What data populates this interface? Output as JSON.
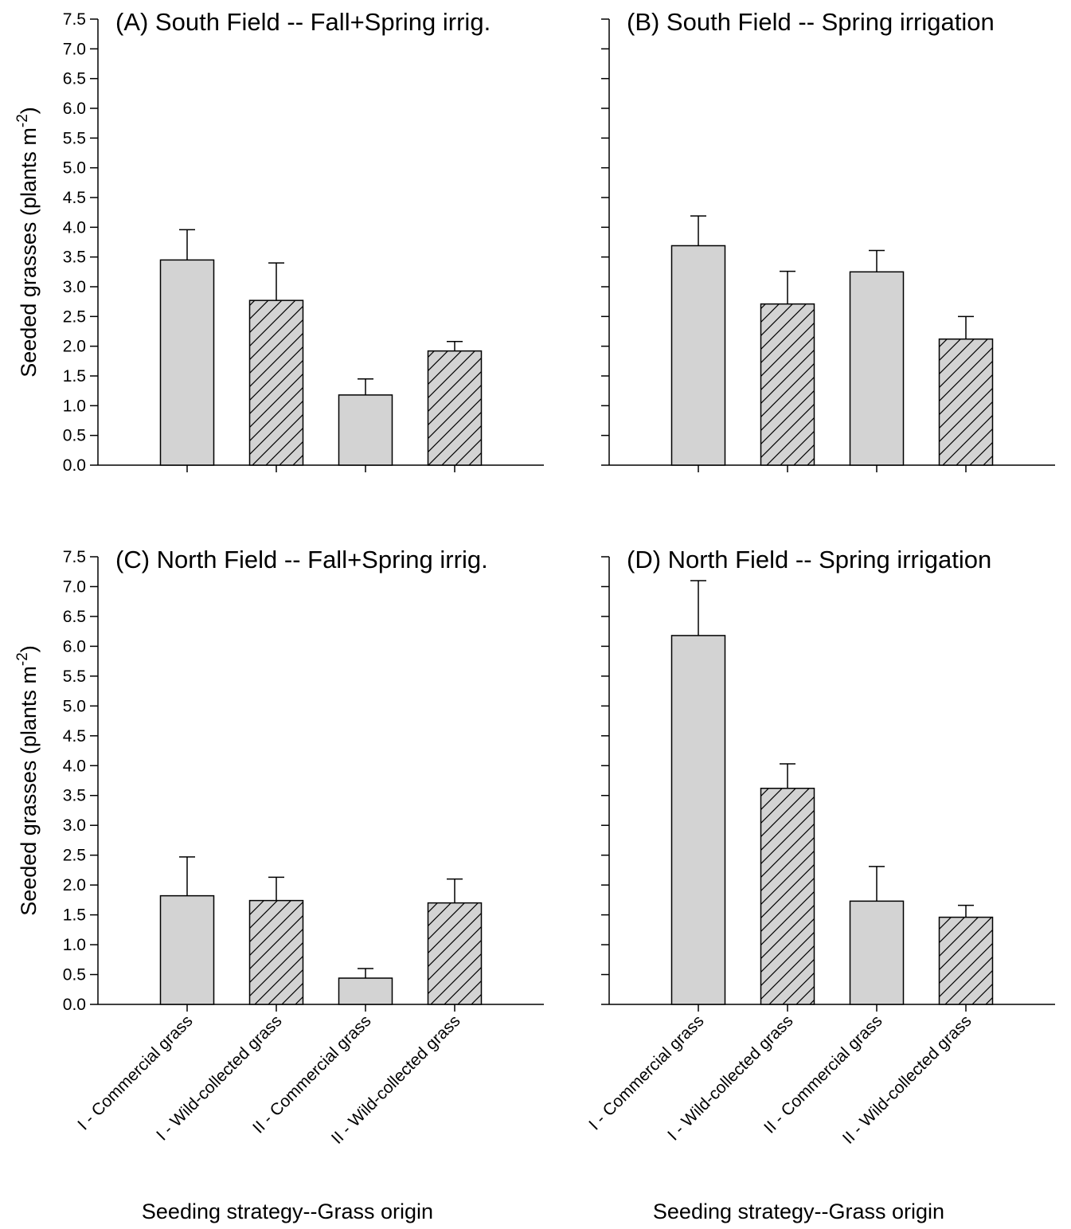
{
  "figure": {
    "y_axis_label_main": "Seeded grasses (plants m",
    "y_axis_label_sup": "-2",
    "y_axis_label_close": ")",
    "x_axis_label": "Seeding strategy--Grass origin",
    "bar_fill": "#d3d3d3",
    "bar_stroke": "#000000"
  },
  "chart_data": [
    {
      "type": "bar",
      "title": "(A) South Field -- Fall+Spring irrig.",
      "categories": [
        "I - Commercial grass",
        "I - Wild-collected grass",
        "II - Commercial grass",
        "II - Wild-collected grass"
      ],
      "series": [
        {
          "values": [
            3.45,
            2.77,
            1.18,
            1.92
          ],
          "errors": [
            0.51,
            0.63,
            0.27,
            0.16
          ]
        }
      ],
      "hatched": [
        false,
        true,
        false,
        true
      ],
      "ylim": [
        0,
        7.5
      ],
      "yticks": [
        "0.0",
        "0.5",
        "1.0",
        "1.5",
        "2.0",
        "2.5",
        "3.0",
        "3.5",
        "4.0",
        "4.5",
        "5.0",
        "5.5",
        "6.0",
        "6.5",
        "7.0",
        "7.5"
      ],
      "show_yticklabels": true,
      "show_xticklabels": false,
      "show_xlabel": false,
      "show_ylabel": true,
      "grid": false
    },
    {
      "type": "bar",
      "title": "(B) South Field -- Spring irrigation",
      "categories": [
        "I - Commercial grass",
        "I - Wild-collected grass",
        "II - Commercial grass",
        "II - Wild-collected grass"
      ],
      "series": [
        {
          "values": [
            3.69,
            2.71,
            3.25,
            2.12
          ],
          "errors": [
            0.5,
            0.55,
            0.36,
            0.38
          ]
        }
      ],
      "hatched": [
        false,
        true,
        false,
        true
      ],
      "ylim": [
        0,
        7.5
      ],
      "yticks": [
        "0.0",
        "0.5",
        "1.0",
        "1.5",
        "2.0",
        "2.5",
        "3.0",
        "3.5",
        "4.0",
        "4.5",
        "5.0",
        "5.5",
        "6.0",
        "6.5",
        "7.0",
        "7.5"
      ],
      "show_yticklabels": false,
      "show_xticklabels": false,
      "show_xlabel": false,
      "show_ylabel": false,
      "grid": false
    },
    {
      "type": "bar",
      "title": "(C) North Field -- Fall+Spring irrig.",
      "categories": [
        "I - Commercial grass",
        "I - Wild-collected grass",
        "II - Commercial grass",
        "II - Wild-collected grass"
      ],
      "series": [
        {
          "values": [
            1.82,
            1.74,
            0.44,
            1.7
          ],
          "errors": [
            0.65,
            0.39,
            0.16,
            0.4
          ]
        }
      ],
      "hatched": [
        false,
        true,
        false,
        true
      ],
      "ylim": [
        0,
        7.5
      ],
      "yticks": [
        "0.0",
        "0.5",
        "1.0",
        "1.5",
        "2.0",
        "2.5",
        "3.0",
        "3.5",
        "4.0",
        "4.5",
        "5.0",
        "5.5",
        "6.0",
        "6.5",
        "7.0",
        "7.5"
      ],
      "show_yticklabels": true,
      "show_xticklabels": true,
      "show_xlabel": true,
      "show_ylabel": true,
      "grid": false
    },
    {
      "type": "bar",
      "title": "(D) North Field -- Spring irrigation",
      "categories": [
        "I - Commercial grass",
        "I - Wild-collected grass",
        "II - Commercial grass",
        "II - Wild-collected grass"
      ],
      "series": [
        {
          "values": [
            6.18,
            3.62,
            1.73,
            1.46
          ],
          "errors": [
            0.92,
            0.41,
            0.58,
            0.2
          ]
        }
      ],
      "hatched": [
        false,
        true,
        false,
        true
      ],
      "ylim": [
        0,
        7.5
      ],
      "yticks": [
        "0.0",
        "0.5",
        "1.0",
        "1.5",
        "2.0",
        "2.5",
        "3.0",
        "3.5",
        "4.0",
        "4.5",
        "5.0",
        "5.5",
        "6.0",
        "6.5",
        "7.0",
        "7.5"
      ],
      "show_yticklabels": false,
      "show_xticklabels": true,
      "show_xlabel": true,
      "show_ylabel": false,
      "grid": false
    }
  ]
}
